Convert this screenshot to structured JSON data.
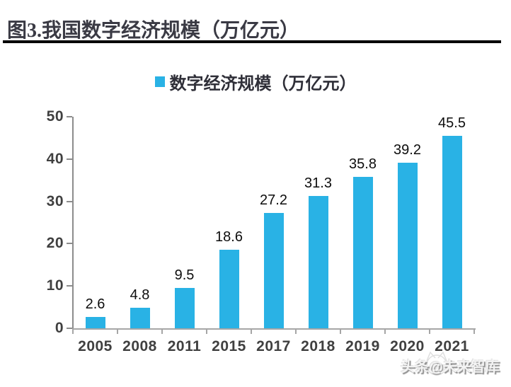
{
  "header": {
    "title": "图3.我国数字经济规模（万亿元）"
  },
  "legend": {
    "label": "数字经济规模（万亿元）",
    "swatch_color": "#29B2E5"
  },
  "chart_data": {
    "type": "bar",
    "title": "数字经济规模（万亿元）",
    "categories": [
      "2005",
      "2008",
      "2011",
      "2015",
      "2017",
      "2018",
      "2019",
      "2020",
      "2021"
    ],
    "values": [
      2.6,
      4.8,
      9.5,
      18.6,
      27.2,
      31.3,
      35.8,
      39.2,
      45.5
    ],
    "data_labels": [
      "2.6",
      "4.8",
      "9.5",
      "18.6",
      "27.2",
      "31.3",
      "35.8",
      "39.2",
      "45.5"
    ],
    "xlabel": "",
    "ylabel": "",
    "ylim": [
      0,
      50
    ],
    "yticks": [
      0,
      10,
      20,
      30,
      40,
      50
    ],
    "bar_color": "#29B2E5",
    "grid": false,
    "legend_position": "top-center",
    "data_labels_shown": true
  },
  "watermark": {
    "text": "头条@未来智库"
  },
  "colors": {
    "background": "#FFFFFF",
    "bar": "#29B2E5",
    "title_text": "#3A3A44",
    "title_rule": "#000000",
    "legend_text": "#2F2F38",
    "axis_text": "#404040",
    "data_label_text": "#0D0D0D",
    "y_axis_line": "#8C8C8C",
    "x_axis_line": "#A6A6A6",
    "watermark": "#BFBFBF"
  }
}
